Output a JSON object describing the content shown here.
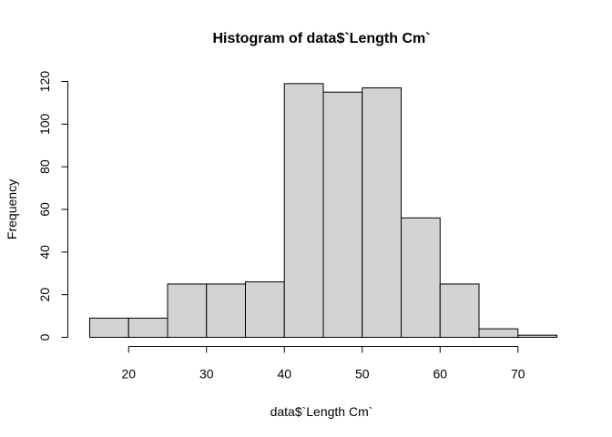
{
  "chart_data": {
    "type": "bar",
    "title": "Histogram of data$`Length Cm`",
    "xlabel": "data$`Length Cm`",
    "ylabel": "Frequency",
    "bins": [
      {
        "from": 15,
        "to": 20,
        "count": 9
      },
      {
        "from": 20,
        "to": 25,
        "count": 9
      },
      {
        "from": 25,
        "to": 30,
        "count": 25
      },
      {
        "from": 30,
        "to": 35,
        "count": 25
      },
      {
        "from": 35,
        "to": 40,
        "count": 26
      },
      {
        "from": 40,
        "to": 45,
        "count": 119
      },
      {
        "from": 45,
        "to": 50,
        "count": 115
      },
      {
        "from": 50,
        "to": 55,
        "count": 117
      },
      {
        "from": 55,
        "to": 60,
        "count": 56
      },
      {
        "from": 60,
        "to": 65,
        "count": 25
      },
      {
        "from": 65,
        "to": 70,
        "count": 4
      },
      {
        "from": 70,
        "to": 75,
        "count": 1
      }
    ],
    "xlim": [
      15,
      75
    ],
    "ylim": [
      0,
      120
    ],
    "xticks": [
      20,
      30,
      40,
      50,
      60,
      70
    ],
    "yticks": [
      0,
      20,
      40,
      60,
      80,
      100,
      120
    ],
    "grid": false,
    "bar_color": "#d3d3d3",
    "edge_color": "#000000"
  }
}
